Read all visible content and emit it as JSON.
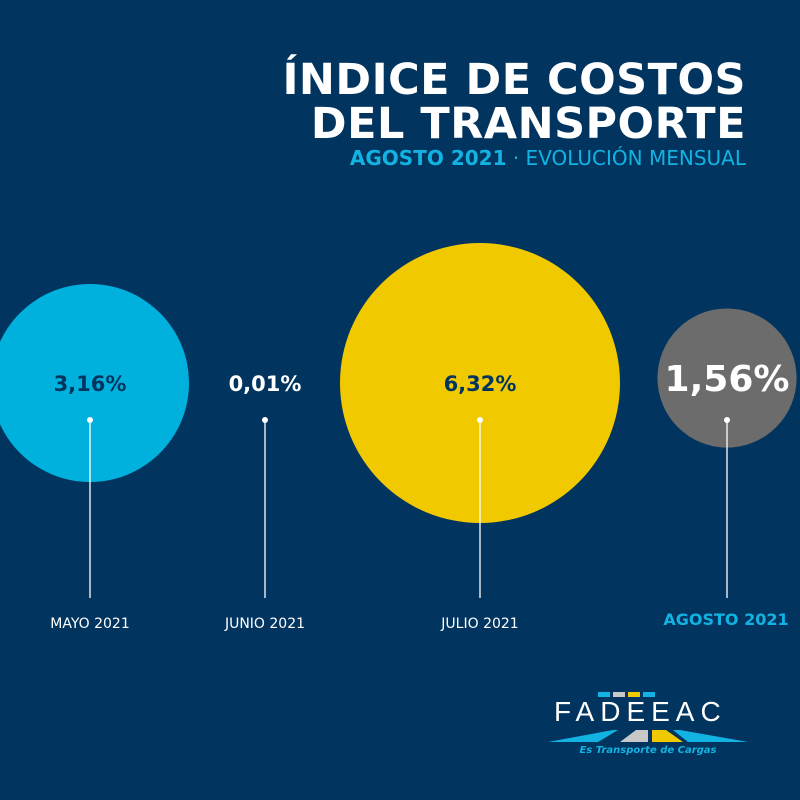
{
  "title_line1": "ÍNDICE DE COSTOS",
  "title_line2": "DEL TRANSPORTE",
  "subtitle_bold": "AGOSTO 2021",
  "subtitle_rest": " · EVOLUCIÓN MENSUAL",
  "chart_data": {
    "type": "bubble",
    "categories": [
      "MAYO 2021",
      "JUNIO 2021",
      "JULIO 2021",
      "AGOSTO 2021"
    ],
    "values": [
      3.16,
      0.01,
      6.32,
      1.56
    ],
    "labels": [
      "3,16%",
      "0,01%",
      "6,32%",
      "1,56%"
    ],
    "colors": [
      "#00b1de",
      "#01355f",
      "#f0c900",
      "#6c6c6c"
    ],
    "highlight": "AGOSTO 2021"
  },
  "colors": {
    "background": "#01355f",
    "accent": "#12b3e3"
  },
  "logo": {
    "text": "FADEEAC",
    "tagline": "Es Transporte de Cargas"
  }
}
